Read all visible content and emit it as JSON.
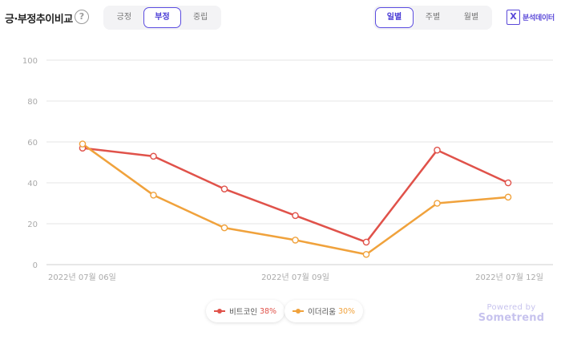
{
  "header": {
    "title": "긍·부정추이비교",
    "help_glyph": "?"
  },
  "sentiment_tabs": [
    {
      "label": "긍정",
      "active": false
    },
    {
      "label": "부정",
      "active": true
    },
    {
      "label": "중립",
      "active": false
    }
  ],
  "period_tabs": [
    {
      "label": "일별",
      "active": true
    },
    {
      "label": "주별",
      "active": false
    },
    {
      "label": "월별",
      "active": false
    }
  ],
  "download": {
    "icon": "excel-icon",
    "icon_glyph": "X",
    "label": "분석데이터"
  },
  "colors": {
    "accent": "#5b4ce0",
    "series_1": "#e0524a",
    "series_2": "#f0a23c",
    "grid": "#e6e6e6"
  },
  "chart_data": {
    "type": "line",
    "y_ticks": [
      "0",
      "20",
      "40",
      "60",
      "80",
      "100"
    ],
    "ylim": [
      0,
      100
    ],
    "x_tick_labels": [
      "2022년 07월 06일",
      "2022년 07월 09일",
      "2022년 07월 12일"
    ],
    "x": [
      "2022-07-06",
      "2022-07-07",
      "2022-07-08",
      "2022-07-09",
      "2022-07-10",
      "2022-07-11",
      "2022-07-12"
    ],
    "grid": true,
    "legend": "bottom-center",
    "series": [
      {
        "name": "비트코인",
        "percent": "38%",
        "values": [
          57,
          53,
          37,
          24,
          11,
          56,
          40
        ]
      },
      {
        "name": "이더리움",
        "percent": "30%",
        "values": [
          59,
          34,
          18,
          12,
          5,
          30,
          33
        ]
      }
    ]
  },
  "watermark": {
    "powered_by": "Powered by",
    "brand": "Sometrend"
  }
}
